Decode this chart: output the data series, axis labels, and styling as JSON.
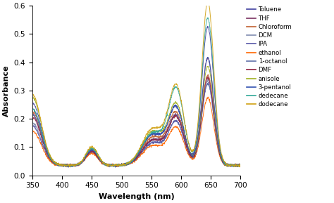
{
  "title": "",
  "xlabel": "Wavelength (nm)",
  "ylabel": "Absorbance",
  "xlim": [
    350,
    700
  ],
  "ylim": [
    0,
    0.6
  ],
  "yticks": [
    0,
    0.1,
    0.2,
    0.3,
    0.4,
    0.5,
    0.6
  ],
  "xticks": [
    350,
    400,
    450,
    500,
    550,
    600,
    650,
    700
  ],
  "solvents": [
    "Toluene",
    "THF",
    "Chloroform",
    "DCM",
    "IPA",
    "ethanol",
    "1-octanol",
    "DMF",
    "anisole",
    "3-pentanol",
    "dedecane",
    "dodecane"
  ],
  "colors": [
    "#4040a0",
    "#7a3060",
    "#c06030",
    "#808cb0",
    "#5858a8",
    "#ff6600",
    "#6070a8",
    "#902040",
    "#a0b020",
    "#3050b0",
    "#30a898",
    "#d0a010"
  ],
  "spectra_params": {
    "Toluene": [
      0.22,
      0.06,
      0.055,
      0.06,
      0.11,
      0.2,
      0.49,
      0.1,
      1
    ],
    "THF": [
      0.18,
      0.055,
      0.05,
      0.055,
      0.09,
      0.17,
      0.38,
      0.09,
      2
    ],
    "Chloroform": [
      0.19,
      0.06,
      0.052,
      0.058,
      0.1,
      0.18,
      0.32,
      0.09,
      3
    ],
    "DCM": [
      0.15,
      0.05,
      0.048,
      0.05,
      0.08,
      0.15,
      0.3,
      0.085,
      4
    ],
    "IPA": [
      0.14,
      0.05,
      0.048,
      0.05,
      0.08,
      0.15,
      0.29,
      0.08,
      5
    ],
    "ethanol": [
      0.12,
      0.045,
      0.043,
      0.045,
      0.07,
      0.13,
      0.24,
      0.07,
      6
    ],
    "1-octanol": [
      0.18,
      0.055,
      0.05,
      0.055,
      0.09,
      0.17,
      0.29,
      0.09,
      7
    ],
    "DMF": [
      0.17,
      0.055,
      0.05,
      0.055,
      0.09,
      0.165,
      0.31,
      0.085,
      8
    ],
    "anisole": [
      0.24,
      0.07,
      0.06,
      0.068,
      0.12,
      0.21,
      0.35,
      0.1,
      9
    ],
    "3-pentanol": [
      0.2,
      0.065,
      0.055,
      0.062,
      0.11,
      0.2,
      0.38,
      0.095,
      10
    ],
    "dedecane": [
      0.2,
      0.07,
      0.06,
      0.068,
      0.115,
      0.265,
      0.52,
      0.1,
      11
    ],
    "dodecane": [
      0.25,
      0.075,
      0.065,
      0.075,
      0.13,
      0.275,
      0.58,
      0.105,
      12
    ]
  }
}
